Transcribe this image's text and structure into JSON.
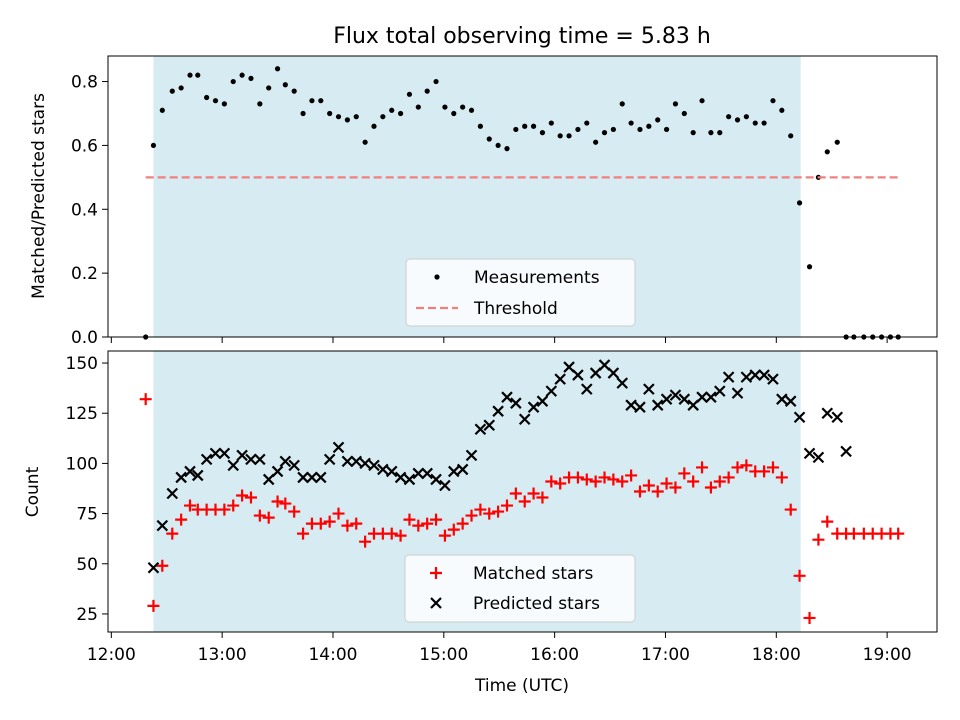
{
  "chart_data": {
    "title": "Flux total observing time = 5.83 h",
    "xlabel": "Time (UTC)",
    "x_unit": "hours UTC",
    "xlim": [
      11.97,
      19.45
    ],
    "xticks": [
      {
        "value": 12,
        "label": "12:00"
      },
      {
        "value": 13,
        "label": "13:00"
      },
      {
        "value": 14,
        "label": "14:00"
      },
      {
        "value": 15,
        "label": "15:00"
      },
      {
        "value": 16,
        "label": "16:00"
      },
      {
        "value": 17,
        "label": "17:00"
      },
      {
        "value": 18,
        "label": "18:00"
      },
      {
        "value": 19,
        "label": "19:00"
      }
    ],
    "observing_span": [
      12.38,
      18.22
    ],
    "span_color": "#add8e6",
    "panels": [
      {
        "type": "scatter",
        "ylabel": "Matched/Predicted stars",
        "ylim": [
          0,
          0.88
        ],
        "yticks": [
          {
            "value": 0.0,
            "label": "0.0"
          },
          {
            "value": 0.2,
            "label": "0.2"
          },
          {
            "value": 0.4,
            "label": "0.4"
          },
          {
            "value": 0.6,
            "label": "0.6"
          },
          {
            "value": 0.8,
            "label": "0.8"
          }
        ],
        "legend_position": "lower-center",
        "series": [
          {
            "name": "Measurements",
            "marker": "dot",
            "color": "#000000",
            "x": [
              12.31,
              12.38,
              12.46,
              12.55,
              12.63,
              12.71,
              12.78,
              12.86,
              12.94,
              13.02,
              13.1,
              13.18,
              13.26,
              13.34,
              13.42,
              13.5,
              13.57,
              13.65,
              13.73,
              13.81,
              13.89,
              13.97,
              14.05,
              14.13,
              14.21,
              14.29,
              14.37,
              14.45,
              14.53,
              14.61,
              14.69,
              14.77,
              14.85,
              14.93,
              15.01,
              15.09,
              15.17,
              15.25,
              15.33,
              15.41,
              15.49,
              15.57,
              15.65,
              15.73,
              15.81,
              15.89,
              15.97,
              16.05,
              16.13,
              16.21,
              16.29,
              16.37,
              16.45,
              16.53,
              16.61,
              16.69,
              16.77,
              16.85,
              16.93,
              17.01,
              17.09,
              17.17,
              17.25,
              17.33,
              17.41,
              17.49,
              17.57,
              17.65,
              17.73,
              17.81,
              17.89,
              17.97,
              18.05,
              18.13,
              18.21,
              18.3,
              18.38,
              18.46,
              18.55,
              18.63,
              18.7,
              18.79,
              18.87,
              18.95,
              19.03,
              19.1
            ],
            "y": [
              0.0,
              0.6,
              0.71,
              0.77,
              0.78,
              0.82,
              0.82,
              0.75,
              0.74,
              0.73,
              0.8,
              0.82,
              0.81,
              0.73,
              0.78,
              0.84,
              0.79,
              0.77,
              0.7,
              0.74,
              0.74,
              0.7,
              0.69,
              0.68,
              0.69,
              0.61,
              0.66,
              0.69,
              0.71,
              0.7,
              0.76,
              0.72,
              0.77,
              0.8,
              0.72,
              0.7,
              0.72,
              0.71,
              0.66,
              0.62,
              0.6,
              0.59,
              0.65,
              0.66,
              0.66,
              0.64,
              0.67,
              0.63,
              0.63,
              0.65,
              0.67,
              0.61,
              0.64,
              0.65,
              0.73,
              0.67,
              0.65,
              0.66,
              0.68,
              0.65,
              0.73,
              0.7,
              0.64,
              0.74,
              0.64,
              0.64,
              0.69,
              0.68,
              0.69,
              0.67,
              0.67,
              0.74,
              0.71,
              0.63,
              0.42,
              0.22,
              0.5,
              0.58,
              0.61,
              0.0,
              0.0,
              0.0,
              0.0,
              0.0,
              0.0,
              0.0
            ]
          },
          {
            "name": "Threshold",
            "line": "dashed",
            "color": "#f08080",
            "x": [
              12.31,
              19.1
            ],
            "y": [
              0.5,
              0.5
            ]
          }
        ]
      },
      {
        "type": "scatter",
        "ylabel": "Count",
        "ylim": [
          16,
          156
        ],
        "yticks": [
          {
            "value": 25,
            "label": "25"
          },
          {
            "value": 50,
            "label": "50"
          },
          {
            "value": 75,
            "label": "75"
          },
          {
            "value": 100,
            "label": "100"
          },
          {
            "value": 125,
            "label": "125"
          },
          {
            "value": 150,
            "label": "150"
          }
        ],
        "legend_position": "lower-center",
        "series": [
          {
            "name": "Matched stars",
            "marker": "plus",
            "color": "#ff0000",
            "x": [
              12.31,
              12.38,
              12.46,
              12.55,
              12.63,
              12.71,
              12.78,
              12.86,
              12.94,
              13.02,
              13.1,
              13.18,
              13.26,
              13.34,
              13.42,
              13.5,
              13.57,
              13.65,
              13.73,
              13.81,
              13.89,
              13.97,
              14.05,
              14.13,
              14.21,
              14.29,
              14.37,
              14.45,
              14.53,
              14.61,
              14.69,
              14.77,
              14.85,
              14.93,
              15.01,
              15.09,
              15.17,
              15.25,
              15.33,
              15.41,
              15.49,
              15.57,
              15.65,
              15.73,
              15.81,
              15.89,
              15.97,
              16.05,
              16.13,
              16.21,
              16.29,
              16.37,
              16.45,
              16.53,
              16.61,
              16.69,
              16.77,
              16.85,
              16.93,
              17.01,
              17.09,
              17.17,
              17.25,
              17.33,
              17.41,
              17.49,
              17.57,
              17.65,
              17.73,
              17.81,
              17.89,
              17.97,
              18.05,
              18.13,
              18.21,
              18.3,
              18.38,
              18.46,
              18.55,
              18.63,
              18.7,
              18.79,
              18.87,
              18.95,
              19.03,
              19.1
            ],
            "y": [
              132,
              29,
              49,
              65,
              72,
              79,
              77,
              77,
              77,
              77,
              79,
              84,
              83,
              74,
              73,
              81,
              80,
              76,
              65,
              70,
              70,
              71,
              75,
              69,
              70,
              61,
              65,
              65,
              65,
              64,
              72,
              69,
              70,
              72,
              64,
              67,
              70,
              74,
              77,
              75,
              76,
              79,
              85,
              81,
              85,
              83,
              91,
              90,
              93,
              93,
              92,
              91,
              93,
              92,
              91,
              94,
              86,
              89,
              86,
              90,
              88,
              95,
              91,
              98,
              88,
              91,
              93,
              98,
              99,
              96,
              96,
              98,
              93,
              77,
              44,
              23,
              62,
              71,
              65,
              65,
              65,
              65,
              65,
              65,
              65,
              65
            ]
          },
          {
            "name": "Predicted stars",
            "marker": "x",
            "color": "#000000",
            "x": [
              12.38,
              12.46,
              12.55,
              12.63,
              12.71,
              12.78,
              12.86,
              12.94,
              13.02,
              13.1,
              13.18,
              13.26,
              13.34,
              13.42,
              13.5,
              13.57,
              13.65,
              13.73,
              13.81,
              13.89,
              13.97,
              14.05,
              14.13,
              14.21,
              14.29,
              14.37,
              14.45,
              14.53,
              14.61,
              14.69,
              14.77,
              14.85,
              14.93,
              15.01,
              15.09,
              15.17,
              15.25,
              15.33,
              15.41,
              15.49,
              15.57,
              15.65,
              15.73,
              15.81,
              15.89,
              15.97,
              16.05,
              16.13,
              16.21,
              16.29,
              16.37,
              16.45,
              16.53,
              16.61,
              16.69,
              16.77,
              16.85,
              16.93,
              17.01,
              17.09,
              17.17,
              17.25,
              17.33,
              17.41,
              17.49,
              17.57,
              17.65,
              17.73,
              17.81,
              17.89,
              17.97,
              18.05,
              18.13,
              18.21,
              18.3,
              18.38,
              18.46,
              18.55,
              18.63
            ],
            "y": [
              48,
              69,
              85,
              93,
              96,
              94,
              102,
              105,
              105,
              99,
              104,
              102,
              102,
              92,
              96,
              101,
              99,
              93,
              93,
              93,
              102,
              108,
              101,
              101,
              100,
              99,
              97,
              96,
              93,
              92,
              95,
              95,
              92,
              89,
              96,
              97,
              104,
              117,
              119,
              126,
              133,
              130,
              122,
              128,
              131,
              136,
              142,
              148,
              144,
              137,
              145,
              149,
              145,
              140,
              129,
              128,
              137,
              129,
              132,
              134,
              132,
              129,
              133,
              133,
              136,
              143,
              135,
              143,
              144,
              144,
              142,
              132,
              131,
              123,
              105,
              103,
              125,
              123,
              106
            ]
          }
        ]
      }
    ]
  }
}
